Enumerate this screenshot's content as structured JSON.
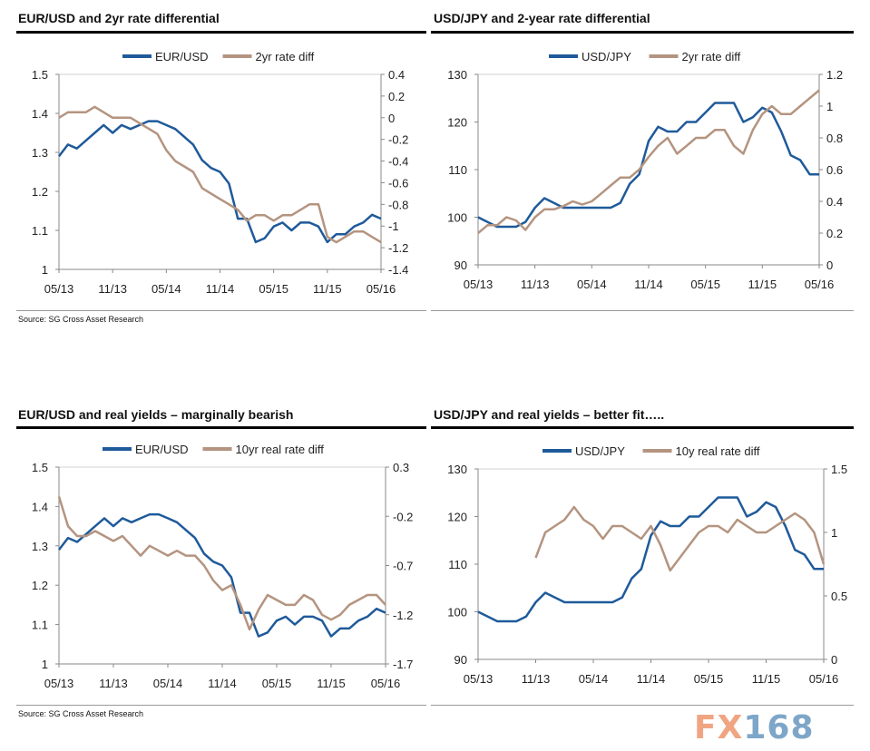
{
  "source": "Source: SG Cross Asset Research",
  "logo": {
    "fx": "FX",
    "num": "168",
    "text": "FX168"
  },
  "colors": {
    "primary": "#1f5a9a",
    "secondary": "#b49480",
    "logo_fx": "#f0a582",
    "logo_num": "#7ea6c8"
  },
  "chart_data": [
    {
      "type": "line",
      "title": "EUR/USD and 2yr rate differential",
      "x_ticks": [
        "05/13",
        "11/13",
        "05/14",
        "11/14",
        "05/15",
        "11/15",
        "05/16"
      ],
      "x_range_months": [
        0,
        36
      ],
      "left_axis": {
        "ylim": [
          1,
          1.5
        ],
        "ticks": [
          "1",
          "1.1",
          "1.2",
          "1.3",
          "1.4",
          "1.5"
        ],
        "tick_values": [
          1,
          1.1,
          1.2,
          1.3,
          1.4,
          1.5
        ]
      },
      "right_axis": {
        "ylim": [
          -1.4,
          0.4
        ],
        "ticks": [
          "-1.4",
          "-1.2",
          "-1",
          "-0.8",
          "-0.6",
          "-0.4",
          "-0.2",
          "0",
          "0.2",
          "0.4"
        ],
        "tick_values": [
          -1.4,
          -1.2,
          -1,
          -0.8,
          -0.6,
          -0.4,
          -0.2,
          0,
          0.2,
          0.4
        ]
      },
      "series": [
        {
          "name": "EUR/USD",
          "axis": "left",
          "start": 0,
          "values": [
            1.29,
            1.32,
            1.31,
            1.33,
            1.35,
            1.37,
            1.35,
            1.37,
            1.36,
            1.37,
            1.38,
            1.38,
            1.37,
            1.36,
            1.34,
            1.32,
            1.28,
            1.26,
            1.25,
            1.22,
            1.13,
            1.13,
            1.07,
            1.08,
            1.11,
            1.12,
            1.1,
            1.12,
            1.12,
            1.11,
            1.07,
            1.09,
            1.09,
            1.11,
            1.12,
            1.14,
            1.13
          ]
        },
        {
          "name": "2yr rate diff",
          "axis": "right",
          "start": 0,
          "values": [
            0.0,
            0.05,
            0.05,
            0.05,
            0.1,
            0.05,
            0.0,
            0.0,
            0.0,
            -0.05,
            -0.1,
            -0.15,
            -0.3,
            -0.4,
            -0.45,
            -0.5,
            -0.65,
            -0.7,
            -0.75,
            -0.8,
            -0.85,
            -0.95,
            -0.9,
            -0.9,
            -0.95,
            -0.9,
            -0.9,
            -0.85,
            -0.8,
            -0.8,
            -1.1,
            -1.15,
            -1.1,
            -1.05,
            -1.05,
            -1.1,
            -1.15
          ]
        }
      ]
    },
    {
      "type": "line",
      "title": "USD/JPY and 2-year rate differential",
      "x_ticks": [
        "05/13",
        "11/13",
        "05/14",
        "11/14",
        "05/15",
        "11/15",
        "05/16"
      ],
      "x_range_months": [
        0,
        36
      ],
      "left_axis": {
        "ylim": [
          90,
          130
        ],
        "ticks": [
          "90",
          "100",
          "110",
          "120",
          "130"
        ],
        "tick_values": [
          90,
          100,
          110,
          120,
          130
        ]
      },
      "right_axis": {
        "ylim": [
          0,
          1.2
        ],
        "ticks": [
          "0",
          "0.2",
          "0.4",
          "0.6",
          "0.8",
          "1",
          "1.2"
        ],
        "tick_values": [
          0,
          0.2,
          0.4,
          0.6,
          0.8,
          1,
          1.2
        ]
      },
      "series": [
        {
          "name": "USD/JPY",
          "axis": "left",
          "start": 0,
          "values": [
            100,
            99,
            98,
            98,
            98,
            99,
            102,
            104,
            103,
            102,
            102,
            102,
            102,
            102,
            102,
            103,
            107,
            109,
            116,
            119,
            118,
            118,
            120,
            120,
            122,
            124,
            124,
            124,
            120,
            121,
            123,
            122,
            118,
            113,
            112,
            109,
            109
          ]
        },
        {
          "name": "2yr rate diff",
          "axis": "right",
          "start": 0,
          "values": [
            0.2,
            0.25,
            0.25,
            0.3,
            0.28,
            0.22,
            0.3,
            0.35,
            0.35,
            0.37,
            0.4,
            0.38,
            0.4,
            0.45,
            0.5,
            0.55,
            0.55,
            0.6,
            0.68,
            0.75,
            0.8,
            0.7,
            0.75,
            0.8,
            0.8,
            0.85,
            0.85,
            0.75,
            0.7,
            0.85,
            0.95,
            1.0,
            0.95,
            0.95,
            1.0,
            1.05,
            1.1
          ]
        }
      ]
    },
    {
      "type": "line",
      "title": "EUR/USD and real yields – marginally bearish",
      "x_ticks": [
        "05/13",
        "11/13",
        "05/14",
        "11/14",
        "05/15",
        "11/15",
        "05/16"
      ],
      "x_range_months": [
        0,
        36
      ],
      "left_axis": {
        "ylim": [
          1,
          1.5
        ],
        "ticks": [
          "1",
          "1.1",
          "1.2",
          "1.3",
          "1.4",
          "1.5"
        ],
        "tick_values": [
          1,
          1.1,
          1.2,
          1.3,
          1.4,
          1.5
        ]
      },
      "right_axis": {
        "ylim": [
          -1.7,
          0.3
        ],
        "ticks": [
          "-1.7",
          "-1.2",
          "-0.7",
          "-0.2",
          "0.3"
        ],
        "tick_values": [
          -1.7,
          -1.2,
          -0.7,
          -0.2,
          0.3
        ]
      },
      "series": [
        {
          "name": "EUR/USD",
          "axis": "left",
          "start": 0,
          "values": [
            1.29,
            1.32,
            1.31,
            1.33,
            1.35,
            1.37,
            1.35,
            1.37,
            1.36,
            1.37,
            1.38,
            1.38,
            1.37,
            1.36,
            1.34,
            1.32,
            1.28,
            1.26,
            1.25,
            1.22,
            1.13,
            1.13,
            1.07,
            1.08,
            1.11,
            1.12,
            1.1,
            1.12,
            1.12,
            1.11,
            1.07,
            1.09,
            1.09,
            1.11,
            1.12,
            1.14,
            1.13
          ]
        },
        {
          "name": "10yr real rate diff",
          "axis": "right",
          "start": 0,
          "values": [
            0.0,
            -0.3,
            -0.4,
            -0.4,
            -0.35,
            -0.4,
            -0.45,
            -0.4,
            -0.5,
            -0.6,
            -0.5,
            -0.55,
            -0.6,
            -0.55,
            -0.6,
            -0.6,
            -0.7,
            -0.85,
            -0.95,
            -0.9,
            -1.1,
            -1.35,
            -1.15,
            -1.0,
            -1.05,
            -1.1,
            -1.1,
            -1.0,
            -1.05,
            -1.2,
            -1.25,
            -1.2,
            -1.1,
            -1.05,
            -1.0,
            -1.0,
            -1.1
          ]
        }
      ]
    },
    {
      "type": "line",
      "title": "USD/JPY and real yields – better fit…..",
      "x_ticks": [
        "05/13",
        "11/13",
        "05/14",
        "11/14",
        "05/15",
        "11/15",
        "05/16"
      ],
      "x_range_months": [
        0,
        36
      ],
      "left_axis": {
        "ylim": [
          90,
          130
        ],
        "ticks": [
          "90",
          "100",
          "110",
          "120",
          "130"
        ],
        "tick_values": [
          90,
          100,
          110,
          120,
          130
        ]
      },
      "right_axis": {
        "ylim": [
          0,
          1.5
        ],
        "ticks": [
          "0",
          "0.5",
          "1",
          "1.5"
        ],
        "tick_values": [
          0,
          0.5,
          1,
          1.5
        ]
      },
      "series": [
        {
          "name": "USD/JPY",
          "axis": "left",
          "start": 0,
          "values": [
            100,
            99,
            98,
            98,
            98,
            99,
            102,
            104,
            103,
            102,
            102,
            102,
            102,
            102,
            102,
            103,
            107,
            109,
            116,
            119,
            118,
            118,
            120,
            120,
            122,
            124,
            124,
            124,
            120,
            121,
            123,
            122,
            118,
            113,
            112,
            109,
            109
          ]
        },
        {
          "name": "10y real rate diff",
          "axis": "right",
          "start": 6,
          "values": [
            0.8,
            1.0,
            1.05,
            1.1,
            1.2,
            1.1,
            1.05,
            0.95,
            1.05,
            1.05,
            1.0,
            0.95,
            1.05,
            0.9,
            0.7,
            0.8,
            0.9,
            1.0,
            1.05,
            1.05,
            1.0,
            1.1,
            1.05,
            1.0,
            1.0,
            1.05,
            1.1,
            1.15,
            1.1,
            1.0,
            0.75
          ]
        }
      ]
    }
  ]
}
